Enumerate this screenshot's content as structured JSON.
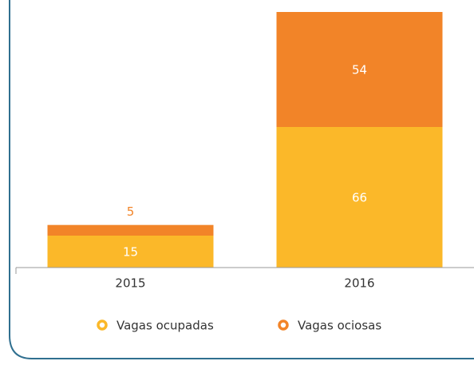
{
  "chart_data": {
    "type": "stacked_bar",
    "categories": [
      "2015",
      "2016"
    ],
    "series": [
      {
        "name": "Vagas ocupadas",
        "color": "#fbb829",
        "values": [
          15,
          66
        ]
      },
      {
        "name": "Vagas ociosas",
        "color": "#f28428",
        "values": [
          5,
          54
        ]
      }
    ],
    "ylim": [
      0,
      120
    ]
  }
}
